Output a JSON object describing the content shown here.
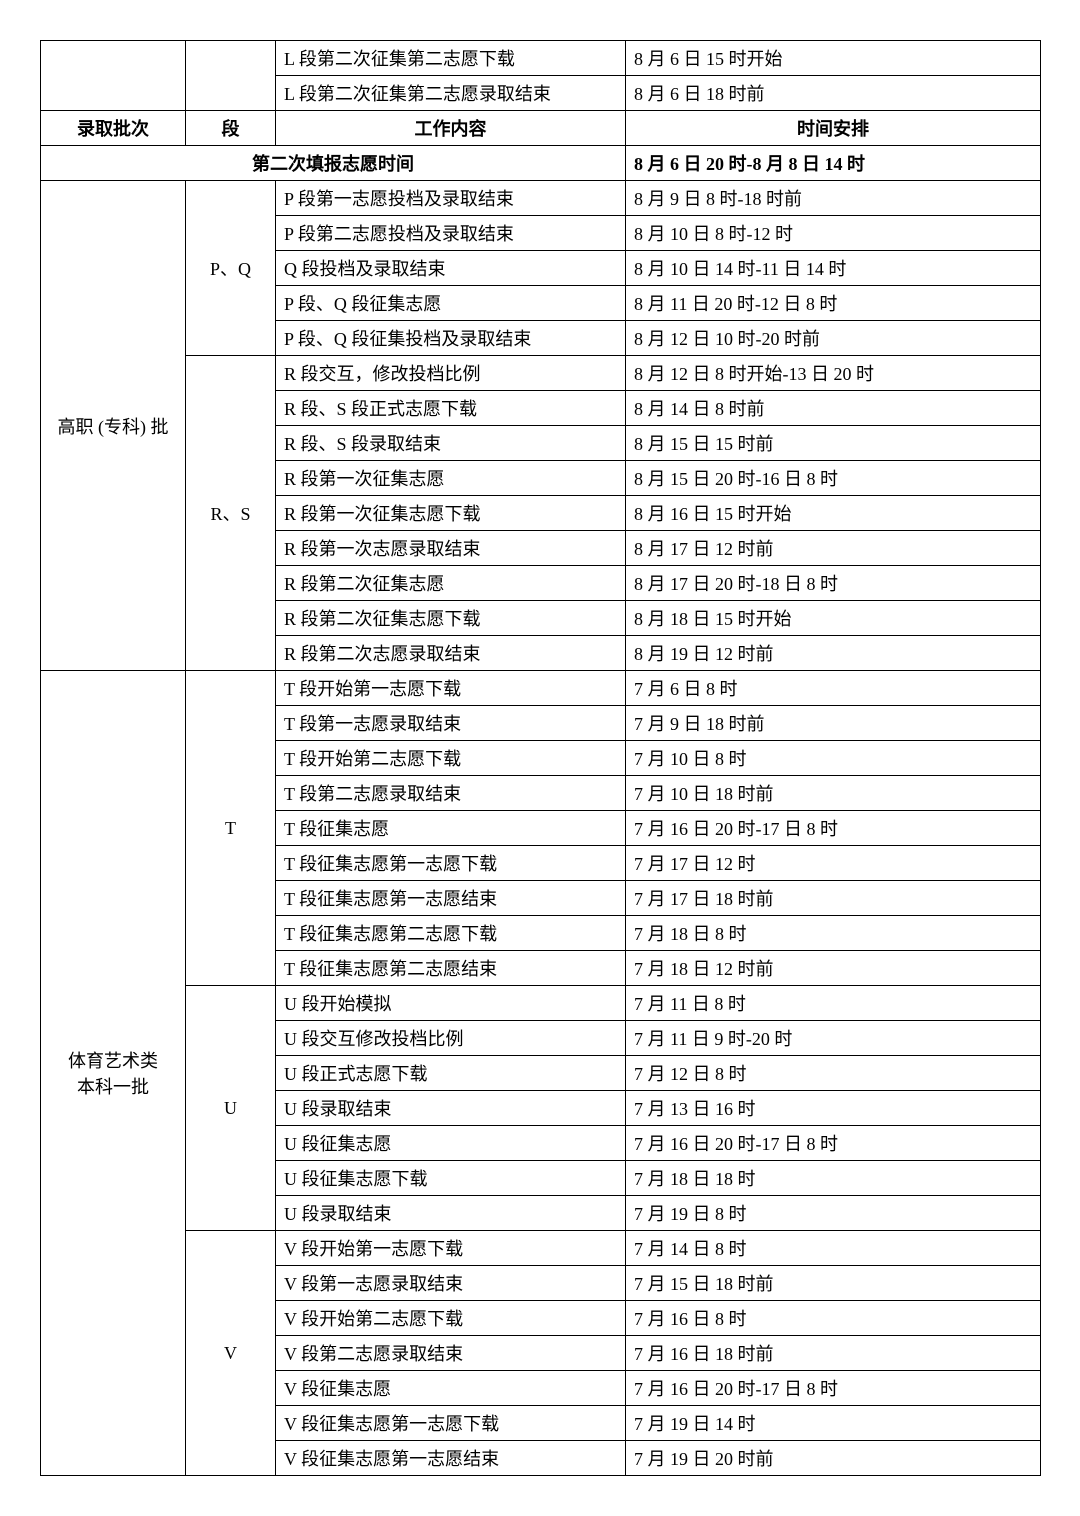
{
  "topRows": [
    {
      "work": "L 段第二次征集第二志愿下载",
      "time": "8 月 6 日 15 时开始"
    },
    {
      "work": "L 段第二次征集第二志愿录取结束",
      "time": "8 月 6 日 18 时前"
    }
  ],
  "headers": {
    "c1": "录取批次",
    "c2": "段",
    "c3": "工作内容",
    "c4": "时间安排"
  },
  "secondFill": {
    "label": "第二次填报志愿时间",
    "time": "8 月 6 日 20 时-8 月 8 日 14 时"
  },
  "groups": [
    {
      "batch": "高职 (专科) 批",
      "segments": [
        {
          "seg": "P、Q",
          "rows": [
            {
              "work": "P 段第一志愿投档及录取结束",
              "time": "8 月 9 日 8 时-18 时前"
            },
            {
              "work": "P 段第二志愿投档及录取结束",
              "time": "8 月 10 日 8 时-12 时"
            },
            {
              "work": "Q 段投档及录取结束",
              "time": "8 月 10 日 14 时-11 日 14 时"
            },
            {
              "work": "P 段、Q 段征集志愿",
              "time": "8 月 11 日 20 时-12 日 8 时"
            },
            {
              "work": "P 段、Q 段征集投档及录取结束",
              "time": "8 月 12 日 10 时-20 时前"
            }
          ]
        },
        {
          "seg": "R、S",
          "rows": [
            {
              "work": "R 段交互，修改投档比例",
              "time": "8 月 12 日 8 时开始-13 日 20 时"
            },
            {
              "work": "R 段、S 段正式志愿下载",
              "time": "8 月 14 日 8 时前"
            },
            {
              "work": "R 段、S 段录取结束",
              "time": "8 月 15 日 15 时前"
            },
            {
              "work": "R 段第一次征集志愿",
              "time": "8 月 15 日 20 时-16 日 8 时"
            },
            {
              "work": "R 段第一次征集志愿下载",
              "time": "8 月 16 日 15 时开始"
            },
            {
              "work": "R 段第一次志愿录取结束",
              "time": "8 月 17 日 12 时前"
            },
            {
              "work": "R 段第二次征集志愿",
              "time": "8 月 17 日 20 时-18 日 8 时"
            },
            {
              "work": "R 段第二次征集志愿下载",
              "time": "8 月 18 日 15 时开始"
            },
            {
              "work": "R 段第二次志愿录取结束",
              "time": "8 月 19 日 12 时前"
            }
          ]
        }
      ]
    },
    {
      "batch": "体育艺术类\n本科一批",
      "segments": [
        {
          "seg": "T",
          "rows": [
            {
              "work": "T 段开始第一志愿下载",
              "time": "7 月 6 日 8 时"
            },
            {
              "work": "T 段第一志愿录取结束",
              "time": "7 月 9 日 18 时前"
            },
            {
              "work": "T 段开始第二志愿下载",
              "time": "7 月 10 日 8 时"
            },
            {
              "work": "T 段第二志愿录取结束",
              "time": "7 月 10 日 18 时前"
            },
            {
              "work": "T 段征集志愿",
              "time": "7 月 16 日 20 时-17 日 8 时"
            },
            {
              "work": "T 段征集志愿第一志愿下载",
              "time": "7 月 17 日 12 时"
            },
            {
              "work": "T 段征集志愿第一志愿结束",
              "time": "7 月 17 日 18 时前"
            },
            {
              "work": "T 段征集志愿第二志愿下载",
              "time": "7 月 18 日 8 时"
            },
            {
              "work": "T 段征集志愿第二志愿结束",
              "time": "7 月 18 日 12 时前"
            }
          ]
        },
        {
          "seg": "U",
          "rows": [
            {
              "work": "U 段开始模拟",
              "time": "7 月 11 日 8 时"
            },
            {
              "work": "U 段交互修改投档比例",
              "time": "7 月 11 日 9 时-20 时"
            },
            {
              "work": "U 段正式志愿下载",
              "time": "7 月 12 日 8 时"
            },
            {
              "work": "U 段录取结束",
              "time": "7 月 13 日 16 时"
            },
            {
              "work": "U 段征集志愿",
              "time": "7 月 16 日 20 时-17 日 8 时"
            },
            {
              "work": "U 段征集志愿下载",
              "time": "7 月 18 日 18 时"
            },
            {
              "work": "U 段录取结束",
              "time": "7 月 19 日 8 时"
            }
          ]
        },
        {
          "seg": "V",
          "rows": [
            {
              "work": "V 段开始第一志愿下载",
              "time": "7 月 14 日 8 时"
            },
            {
              "work": "V 段第一志愿录取结束",
              "time": "7 月 15 日 18 时前"
            },
            {
              "work": "V 段开始第二志愿下载",
              "time": "7 月 16 日 8 时"
            },
            {
              "work": "V 段第二志愿录取结束",
              "time": "7 月 16 日 18 时前"
            },
            {
              "work": "V 段征集志愿",
              "time": "7 月 16 日 20 时-17 日 8 时"
            },
            {
              "work": "V 段征集志愿第一志愿下载",
              "time": "7 月 19 日 14 时"
            },
            {
              "work": "V 段征集志愿第一志愿结束",
              "time": "7 月 19 日 20 时前"
            }
          ]
        }
      ]
    }
  ]
}
